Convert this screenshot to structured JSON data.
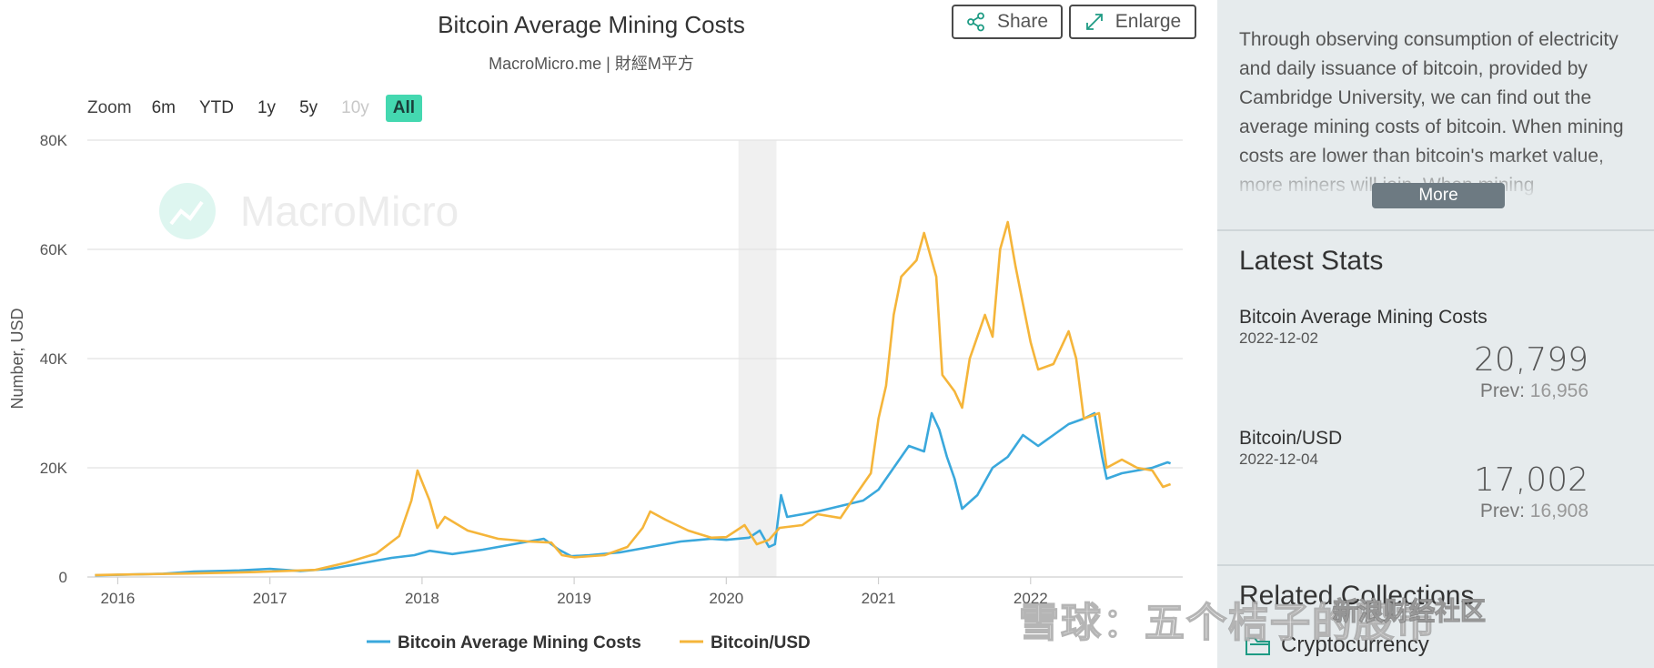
{
  "header": {
    "title": "Bitcoin Average Mining Costs",
    "subtitle": "MacroMicro.me | 財經M平方",
    "share_label": "Share",
    "enlarge_label": "Enlarge"
  },
  "zoom": {
    "label": "Zoom",
    "options": [
      "6m",
      "YTD",
      "1y",
      "5y",
      "10y",
      "All"
    ],
    "disabled": [
      "10y"
    ],
    "active": "All"
  },
  "watermark": "MacroMicro",
  "side": {
    "description": "Through observing consumption of electricity and daily issuance of bitcoin, provided by Cambridge University, we can find out the average mining costs of bitcoin. When mining costs are lower than bitcoin's market value, more miners will join. When mining",
    "more_label": "More",
    "stats_heading": "Latest Stats",
    "stats": [
      {
        "name": "Bitcoin Average Mining Costs",
        "date": "2022-12-02",
        "value": "20,799",
        "prev_label": "Prev:",
        "prev_value": "16,956"
      },
      {
        "name": "Bitcoin/USD",
        "date": "2022-12-04",
        "value": "17,002",
        "prev_label": "Prev:",
        "prev_value": "16,908"
      }
    ],
    "related_heading": "Related Collections",
    "related_item": "Cryptocurrency"
  },
  "overlay": {
    "xueqiu": "雪球：五个桔子的股市",
    "sina": "新浪财经社区"
  },
  "colors": {
    "mining": "#3aa8dc",
    "btc": "#f5b53a",
    "grid": "#e2e2e2",
    "shade": "#f0f0f0",
    "accent": "#44d8b0"
  },
  "chart_data": {
    "type": "line",
    "ylabel": "Number, USD",
    "xlabel": "",
    "y_ticks": [
      "0",
      "20K",
      "40K",
      "60K",
      "80K"
    ],
    "ylim": [
      0,
      80000
    ],
    "xlim": [
      2015.8,
      2023.0
    ],
    "x_ticks": [
      "2016",
      "2017",
      "2018",
      "2019",
      "2020",
      "2021",
      "2022"
    ],
    "shaded_band": [
      2020.08,
      2020.33
    ],
    "grid": true,
    "legend_position": "bottom",
    "series": [
      {
        "name": "Bitcoin Average Mining Costs",
        "color_key": "mining",
        "points": [
          [
            2015.85,
            300
          ],
          [
            2016.0,
            400
          ],
          [
            2016.3,
            600
          ],
          [
            2016.5,
            1000
          ],
          [
            2016.8,
            1200
          ],
          [
            2017.0,
            1500
          ],
          [
            2017.2,
            1100
          ],
          [
            2017.4,
            1500
          ],
          [
            2017.6,
            2500
          ],
          [
            2017.8,
            3500
          ],
          [
            2017.95,
            4000
          ],
          [
            2018.05,
            4800
          ],
          [
            2018.2,
            4200
          ],
          [
            2018.4,
            5000
          ],
          [
            2018.6,
            6000
          ],
          [
            2018.8,
            7000
          ],
          [
            2018.9,
            5000
          ],
          [
            2018.98,
            3800
          ],
          [
            2019.1,
            4000
          ],
          [
            2019.3,
            4500
          ],
          [
            2019.5,
            5500
          ],
          [
            2019.7,
            6500
          ],
          [
            2019.9,
            7000
          ],
          [
            2020.0,
            6800
          ],
          [
            2020.15,
            7200
          ],
          [
            2020.22,
            8500
          ],
          [
            2020.28,
            5500
          ],
          [
            2020.32,
            6000
          ],
          [
            2020.36,
            15000
          ],
          [
            2020.4,
            11000
          ],
          [
            2020.6,
            12000
          ],
          [
            2020.75,
            13000
          ],
          [
            2020.9,
            14000
          ],
          [
            2021.0,
            16000
          ],
          [
            2021.1,
            20000
          ],
          [
            2021.2,
            24000
          ],
          [
            2021.3,
            23000
          ],
          [
            2021.35,
            30000
          ],
          [
            2021.4,
            27000
          ],
          [
            2021.45,
            22000
          ],
          [
            2021.5,
            18000
          ],
          [
            2021.55,
            12500
          ],
          [
            2021.65,
            15000
          ],
          [
            2021.75,
            20000
          ],
          [
            2021.85,
            22000
          ],
          [
            2021.95,
            26000
          ],
          [
            2022.05,
            24000
          ],
          [
            2022.15,
            26000
          ],
          [
            2022.25,
            28000
          ],
          [
            2022.35,
            29000
          ],
          [
            2022.42,
            30000
          ],
          [
            2022.47,
            22000
          ],
          [
            2022.5,
            18000
          ],
          [
            2022.6,
            19000
          ],
          [
            2022.7,
            19500
          ],
          [
            2022.8,
            20000
          ],
          [
            2022.9,
            21000
          ],
          [
            2022.92,
            20799
          ]
        ]
      },
      {
        "name": "Bitcoin/USD",
        "color_key": "btc",
        "points": [
          [
            2015.85,
            350
          ],
          [
            2016.0,
            430
          ],
          [
            2016.5,
            650
          ],
          [
            2016.9,
            900
          ],
          [
            2017.0,
            1000
          ],
          [
            2017.3,
            1300
          ],
          [
            2017.5,
            2600
          ],
          [
            2017.7,
            4300
          ],
          [
            2017.85,
            7500
          ],
          [
            2017.93,
            14000
          ],
          [
            2017.97,
            19500
          ],
          [
            2018.05,
            14000
          ],
          [
            2018.1,
            9000
          ],
          [
            2018.15,
            11000
          ],
          [
            2018.3,
            8500
          ],
          [
            2018.5,
            7000
          ],
          [
            2018.7,
            6500
          ],
          [
            2018.85,
            6300
          ],
          [
            2018.92,
            4000
          ],
          [
            2019.0,
            3600
          ],
          [
            2019.2,
            4000
          ],
          [
            2019.35,
            5500
          ],
          [
            2019.45,
            9000
          ],
          [
            2019.5,
            12000
          ],
          [
            2019.6,
            10500
          ],
          [
            2019.75,
            8500
          ],
          [
            2019.9,
            7200
          ],
          [
            2020.0,
            7300
          ],
          [
            2020.12,
            9500
          ],
          [
            2020.2,
            6000
          ],
          [
            2020.28,
            6800
          ],
          [
            2020.35,
            9000
          ],
          [
            2020.5,
            9500
          ],
          [
            2020.6,
            11500
          ],
          [
            2020.75,
            10800
          ],
          [
            2020.85,
            15000
          ],
          [
            2020.95,
            19000
          ],
          [
            2021.0,
            29000
          ],
          [
            2021.05,
            35000
          ],
          [
            2021.1,
            48000
          ],
          [
            2021.15,
            55000
          ],
          [
            2021.25,
            58000
          ],
          [
            2021.3,
            63000
          ],
          [
            2021.38,
            55000
          ],
          [
            2021.42,
            37000
          ],
          [
            2021.5,
            34000
          ],
          [
            2021.55,
            31000
          ],
          [
            2021.6,
            40000
          ],
          [
            2021.7,
            48000
          ],
          [
            2021.75,
            44000
          ],
          [
            2021.8,
            60000
          ],
          [
            2021.85,
            65000
          ],
          [
            2021.9,
            57000
          ],
          [
            2021.95,
            50000
          ],
          [
            2022.0,
            43000
          ],
          [
            2022.05,
            38000
          ],
          [
            2022.15,
            39000
          ],
          [
            2022.25,
            45000
          ],
          [
            2022.3,
            40000
          ],
          [
            2022.35,
            29000
          ],
          [
            2022.45,
            30000
          ],
          [
            2022.5,
            20000
          ],
          [
            2022.6,
            21500
          ],
          [
            2022.7,
            20000
          ],
          [
            2022.8,
            19500
          ],
          [
            2022.87,
            16500
          ],
          [
            2022.92,
            17002
          ]
        ]
      }
    ]
  }
}
